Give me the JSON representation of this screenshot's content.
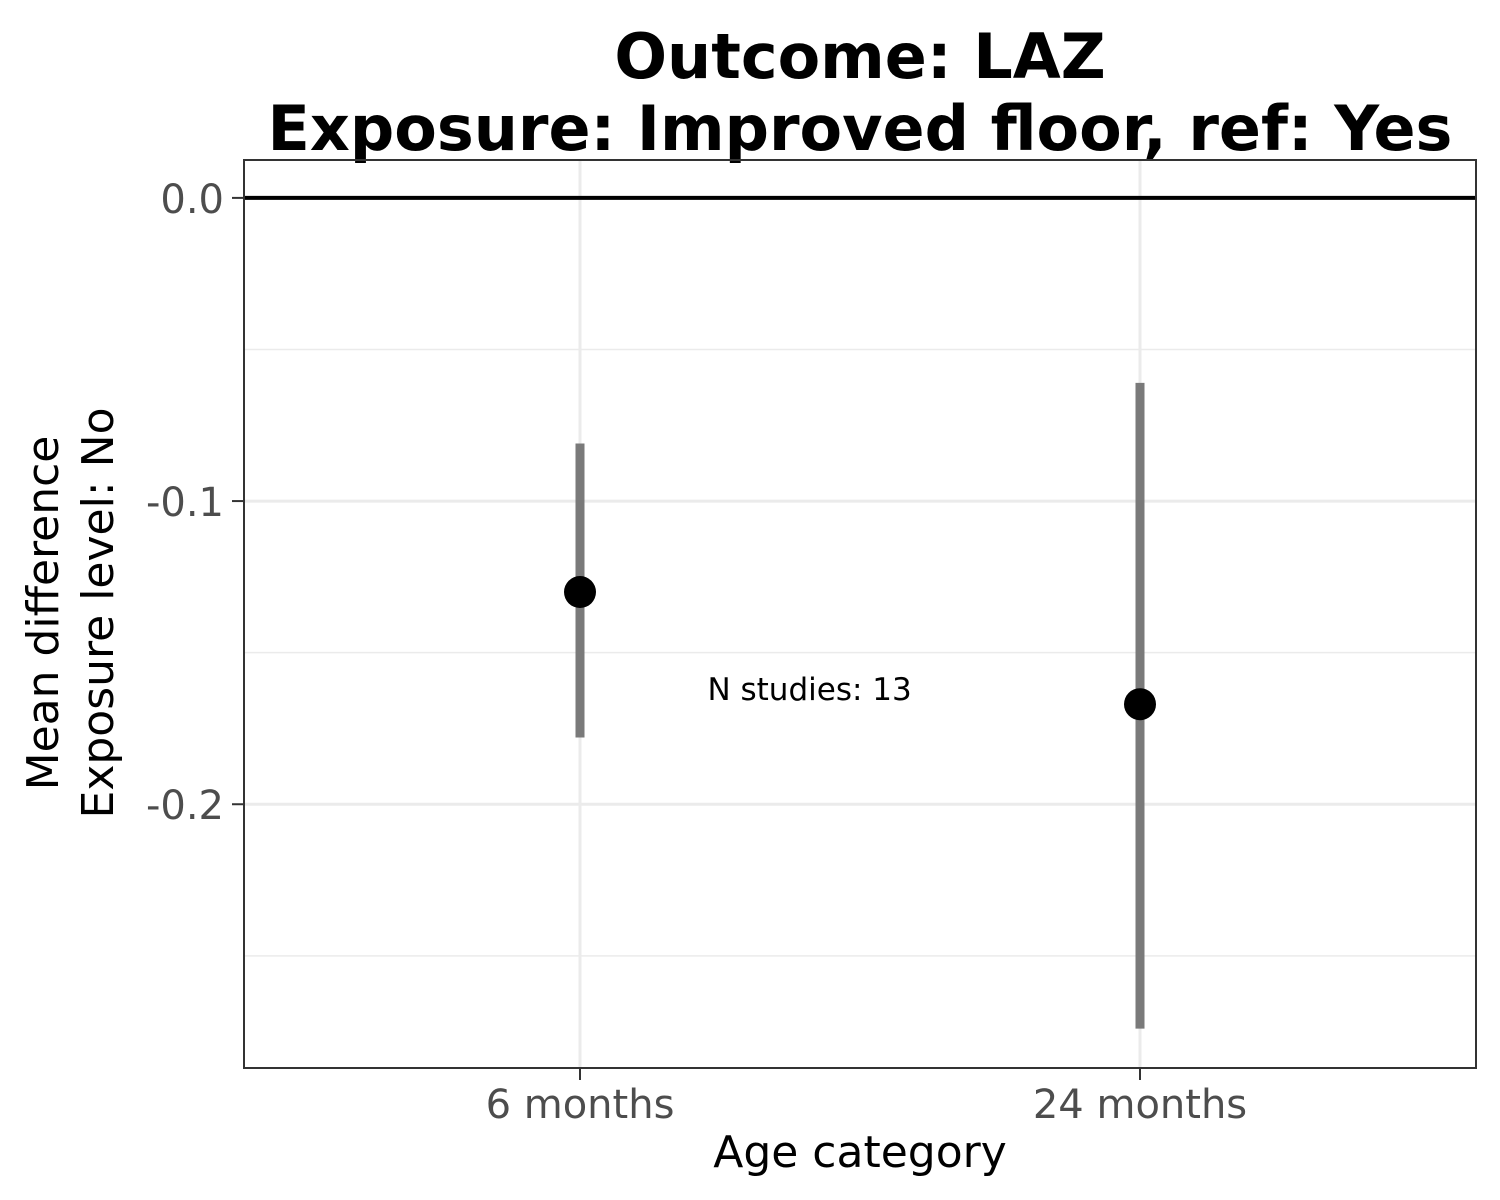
{
  "chart_data": {
    "type": "scatter",
    "title_lines": [
      "Outcome: LAZ",
      "Exposure: Improved floor, ref: Yes"
    ],
    "xlabel": "Age category",
    "ylabel_lines": [
      "Mean difference",
      "Exposure level: No"
    ],
    "categories": [
      "6 months",
      "24 months"
    ],
    "estimates": [
      -0.13,
      -0.167
    ],
    "ci_lower": [
      -0.178,
      -0.274
    ],
    "ci_upper": [
      -0.081,
      -0.061
    ],
    "yticks": [
      0.0,
      -0.1,
      -0.2
    ],
    "ytick_labels": [
      "0.0",
      "-0.1",
      "-0.2"
    ],
    "ylim": [
      -0.287,
      0.0125
    ],
    "reference_line": 0.0,
    "annotation": {
      "text": "N studies: 13",
      "x_category_position": 1.41,
      "y": -0.162
    },
    "grid": true,
    "colors": {
      "point": "#000000",
      "errorbar": "#7a7a7a",
      "grid": "#ebebeb",
      "reference": "#000000"
    }
  }
}
